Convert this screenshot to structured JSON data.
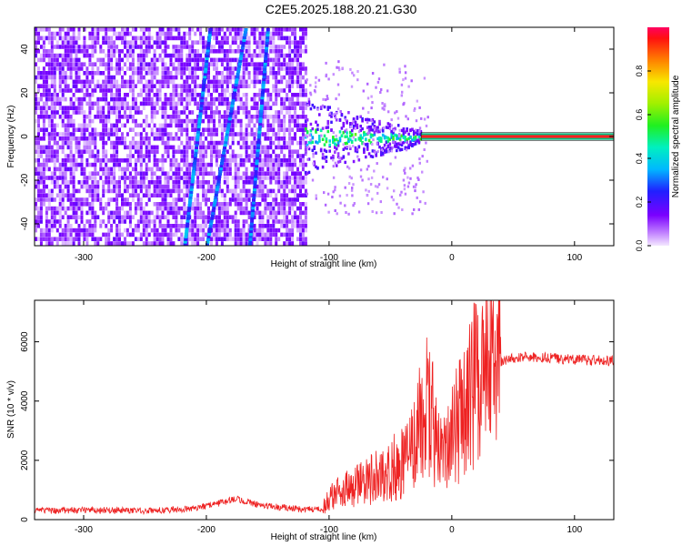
{
  "title": "C2E5.2025.188.20.21.G30",
  "chart_data": [
    {
      "type": "heatmap",
      "xlabel": "Height of straight line (km)",
      "ylabel": "Frequency (Hz)",
      "xlim": [
        -340,
        132
      ],
      "ylim": [
        -50,
        50
      ],
      "xticks": [
        -300,
        -200,
        -100,
        0,
        100
      ],
      "yticks": [
        -40,
        -20,
        0,
        20,
        40
      ],
      "colorbar": {
        "label": "Normalized spectral amplitude",
        "range": [
          0,
          1
        ],
        "ticks": [
          0.0,
          0.2,
          0.4,
          0.6,
          0.8
        ]
      },
      "features": {
        "noise_region_km": [
          -340,
          -120
        ],
        "streaks": [
          {
            "km_at_top": -197,
            "km_at_bottom": -218
          },
          {
            "km_at_top": -168,
            "km_at_bottom": -200
          },
          {
            "km_at_top": -150,
            "km_at_bottom": -165
          }
        ],
        "scatter_cloud_km": [
          -120,
          -25
        ],
        "carrier_line_start_km": -25,
        "carrier_frequency_hz": 0
      },
      "grid": false
    },
    {
      "type": "line",
      "xlabel": "Height of straight line (km)",
      "ylabel": "SNR (10 * v/v)",
      "xlim": [
        -340,
        132
      ],
      "ylim": [
        0,
        7400
      ],
      "xticks": [
        -300,
        -200,
        -100,
        0,
        100
      ],
      "yticks": [
        0,
        2000,
        4000,
        6000
      ],
      "color": "#ee2222",
      "series": [
        {
          "x": [
            -340,
            -300,
            -250,
            -210,
            -190,
            -175,
            -160,
            -140,
            -120,
            -105,
            -100,
            -90,
            -80,
            -70,
            -60,
            -50,
            -40,
            -30,
            -25,
            -20,
            -15,
            -10,
            -5,
            0,
            5,
            10,
            15,
            20,
            30,
            40,
            50,
            60,
            80,
            100,
            132
          ],
          "y": [
            300,
            320,
            300,
            360,
            550,
            700,
            520,
            420,
            330,
            380,
            700,
            1000,
            1100,
            1250,
            1450,
            1700,
            1900,
            2500,
            3500,
            3800,
            3200,
            2500,
            2200,
            2800,
            3200,
            3600,
            4200,
            4600,
            5100,
            5300,
            5450,
            5500,
            5450,
            5400,
            5350
          ]
        }
      ],
      "grid": false
    }
  ]
}
